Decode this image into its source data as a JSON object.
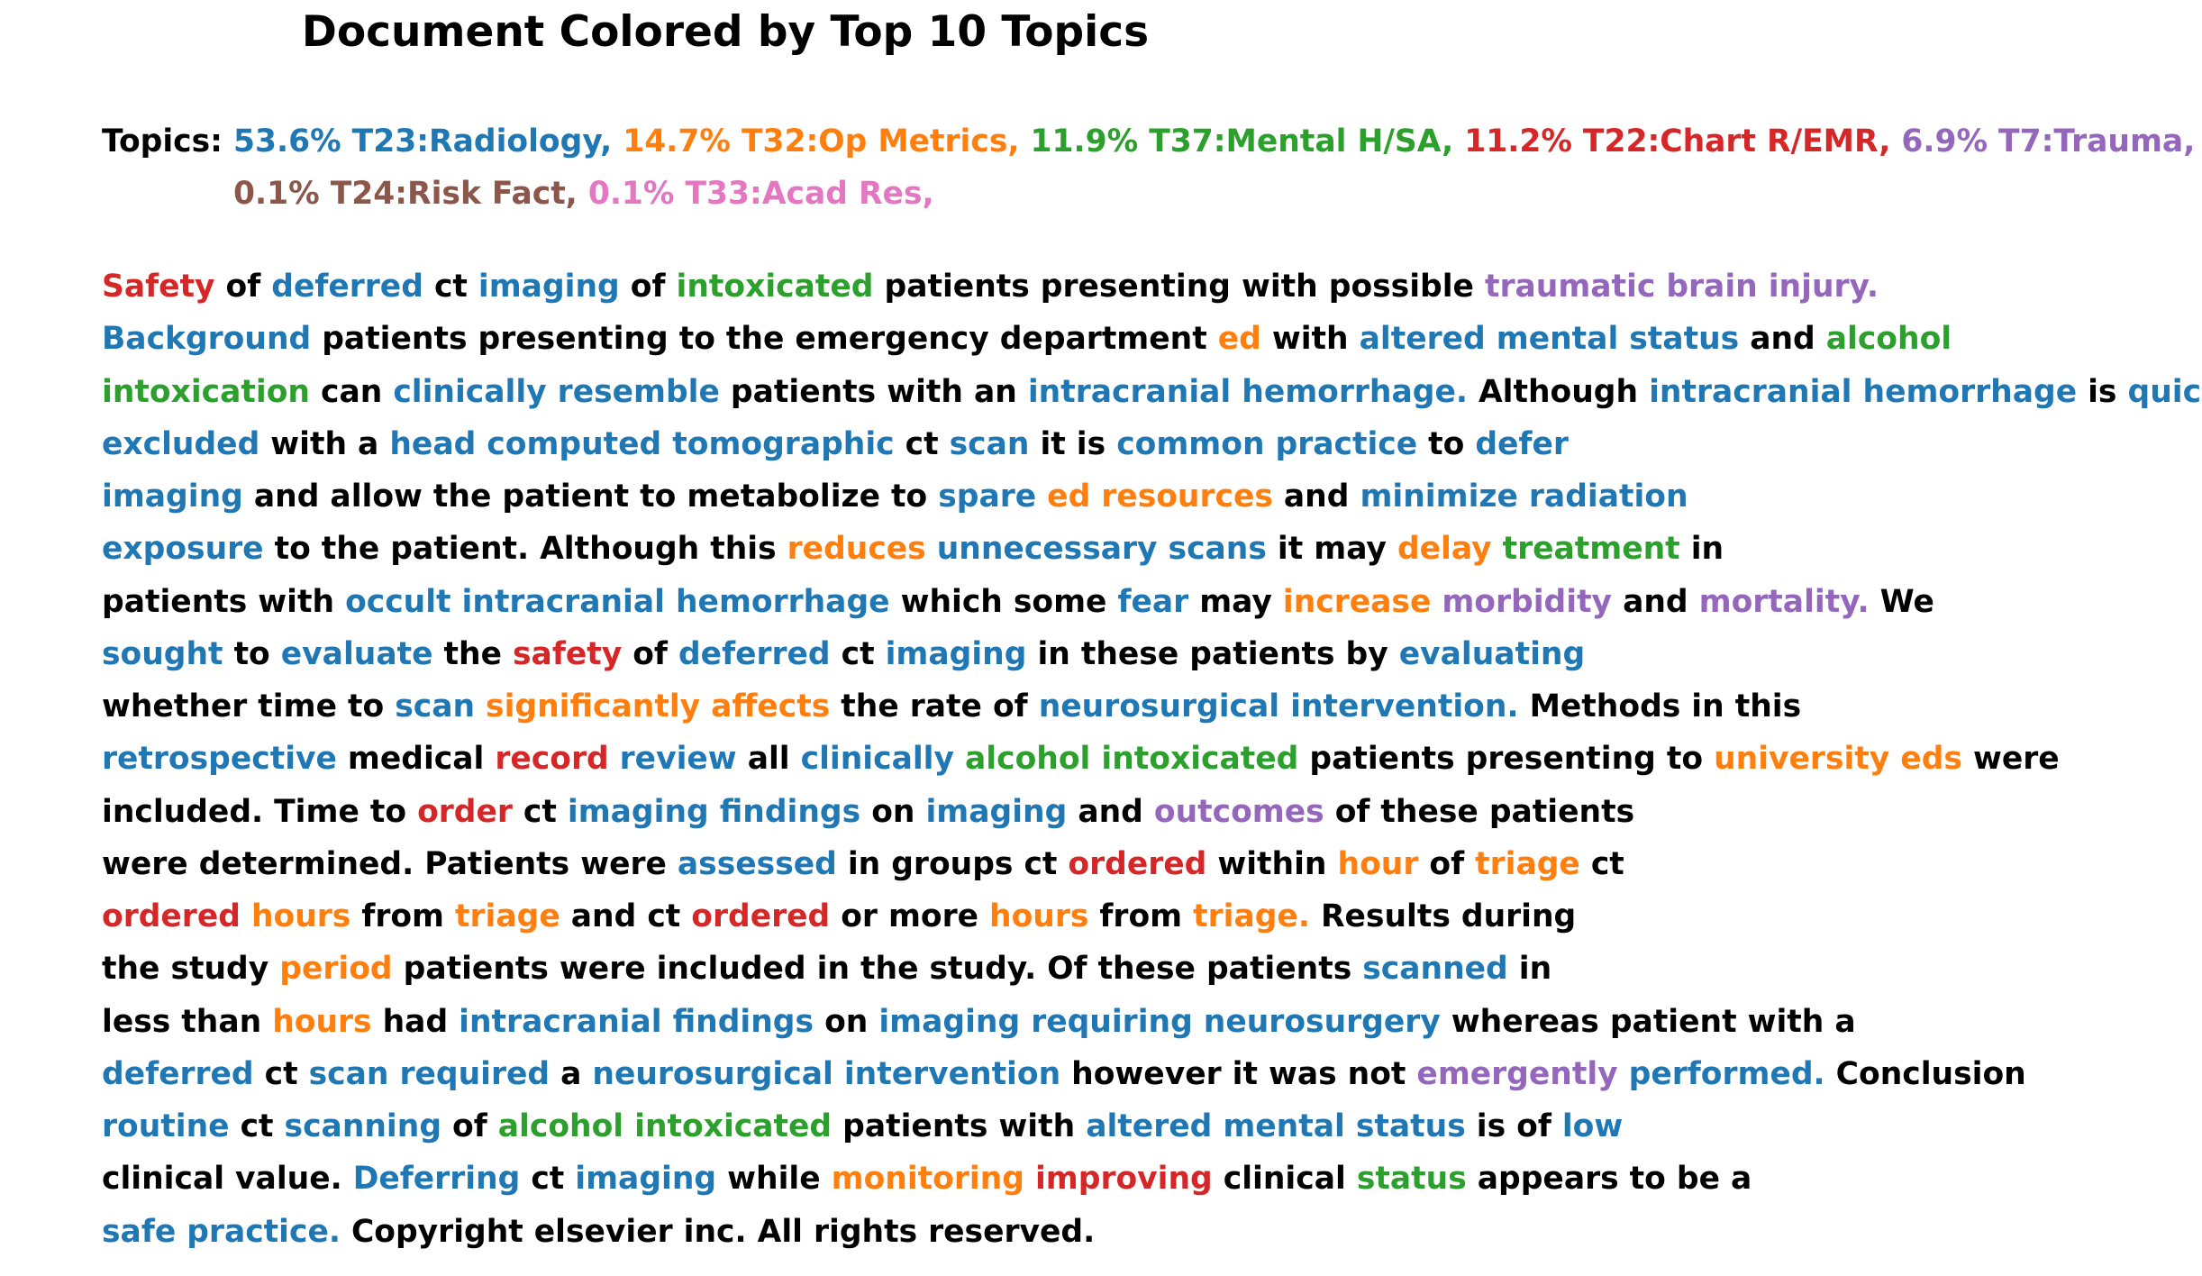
{
  "title": "Document Colored by Top 10 Topics",
  "colors": {
    "k": "#000000",
    "b": "#1f77b4",
    "o": "#ff7f0e",
    "g": "#2ca02c",
    "r": "#d62728",
    "p": "#9467bd",
    "n": "#8c564b",
    "m": "#e377c2"
  },
  "topics_label": "Topics:",
  "topics": [
    {
      "text": "53.6% T23:Radiology,",
      "color": "b"
    },
    {
      "text": "14.7% T32:Op Metrics,",
      "color": "o"
    },
    {
      "text": "11.9% T37:Mental H/SA,",
      "color": "g"
    },
    {
      "text": "11.2% T22:Chart R/EMR,",
      "color": "r"
    },
    {
      "text": "6.9% T7:Trauma,",
      "color": "p"
    },
    {
      "text": "0.1% T24:Risk Fact,",
      "color": "n"
    },
    {
      "text": "0.1% T33:Acad Res,",
      "color": "m"
    }
  ],
  "body_lines": [
    [
      [
        "Safety",
        "r"
      ],
      [
        "of",
        "k"
      ],
      [
        "deferred",
        "b"
      ],
      [
        "ct",
        "k"
      ],
      [
        "imaging",
        "b"
      ],
      [
        "of",
        "k"
      ],
      [
        "intoxicated",
        "g"
      ],
      [
        "patients presenting with possible",
        "k"
      ],
      [
        "traumatic brain injury.",
        "p"
      ]
    ],
    [
      [
        "Background",
        "b"
      ],
      [
        "patients presenting to the emergency department",
        "k"
      ],
      [
        "ed",
        "o"
      ],
      [
        "with",
        "k"
      ],
      [
        "altered mental status",
        "b"
      ],
      [
        "and",
        "k"
      ],
      [
        "alcohol",
        "g"
      ]
    ],
    [
      [
        "intoxication",
        "g"
      ],
      [
        "can",
        "k"
      ],
      [
        "clinically resemble",
        "b"
      ],
      [
        "patients with an",
        "k"
      ],
      [
        "intracranial hemorrhage.",
        "b"
      ],
      [
        "Although",
        "k"
      ],
      [
        "intracranial hemorrhage",
        "b"
      ],
      [
        "is",
        "k"
      ],
      [
        "quickly",
        "b"
      ]
    ],
    [
      [
        "excluded",
        "b"
      ],
      [
        "with a",
        "k"
      ],
      [
        "head computed tomographic",
        "b"
      ],
      [
        "ct",
        "k"
      ],
      [
        "scan",
        "b"
      ],
      [
        "it is",
        "k"
      ],
      [
        "common practice",
        "b"
      ],
      [
        "to",
        "k"
      ],
      [
        "defer",
        "b"
      ]
    ],
    [
      [
        "imaging",
        "b"
      ],
      [
        "and allow the patient to metabolize to",
        "k"
      ],
      [
        "spare",
        "b"
      ],
      [
        "ed resources",
        "o"
      ],
      [
        "and",
        "k"
      ],
      [
        "minimize radiation",
        "b"
      ]
    ],
    [
      [
        "exposure",
        "b"
      ],
      [
        "to the patient. Although this",
        "k"
      ],
      [
        "reduces",
        "o"
      ],
      [
        "unnecessary scans",
        "b"
      ],
      [
        "it may",
        "k"
      ],
      [
        "delay",
        "o"
      ],
      [
        "treatment",
        "g"
      ],
      [
        "in",
        "k"
      ]
    ],
    [
      [
        "patients with",
        "k"
      ],
      [
        "occult intracranial hemorrhage",
        "b"
      ],
      [
        "which some",
        "k"
      ],
      [
        "fear",
        "b"
      ],
      [
        "may",
        "k"
      ],
      [
        "increase",
        "o"
      ],
      [
        "morbidity",
        "p"
      ],
      [
        "and",
        "k"
      ],
      [
        "mortality.",
        "p"
      ],
      [
        "We",
        "k"
      ]
    ],
    [
      [
        "sought",
        "b"
      ],
      [
        "to",
        "k"
      ],
      [
        "evaluate",
        "b"
      ],
      [
        "the",
        "k"
      ],
      [
        "safety",
        "r"
      ],
      [
        "of",
        "k"
      ],
      [
        "deferred",
        "b"
      ],
      [
        "ct",
        "k"
      ],
      [
        "imaging",
        "b"
      ],
      [
        "in these patients by",
        "k"
      ],
      [
        "evaluating",
        "b"
      ]
    ],
    [
      [
        "whether time to",
        "k"
      ],
      [
        "scan",
        "b"
      ],
      [
        "significantly affects",
        "o"
      ],
      [
        "the rate of",
        "k"
      ],
      [
        "neurosurgical intervention.",
        "b"
      ],
      [
        "Methods in this",
        "k"
      ]
    ],
    [
      [
        "retrospective",
        "b"
      ],
      [
        "medical",
        "k"
      ],
      [
        "record",
        "r"
      ],
      [
        "review",
        "b"
      ],
      [
        "all",
        "k"
      ],
      [
        "clinically",
        "b"
      ],
      [
        "alcohol intoxicated",
        "g"
      ],
      [
        "patients presenting to",
        "k"
      ],
      [
        "university eds",
        "o"
      ],
      [
        "were",
        "k"
      ]
    ],
    [
      [
        "included. Time to",
        "k"
      ],
      [
        "order",
        "r"
      ],
      [
        "ct",
        "k"
      ],
      [
        "imaging findings",
        "b"
      ],
      [
        "on",
        "k"
      ],
      [
        "imaging",
        "b"
      ],
      [
        "and",
        "k"
      ],
      [
        "outcomes",
        "p"
      ],
      [
        "of these patients",
        "k"
      ]
    ],
    [
      [
        "were determined. Patients were",
        "k"
      ],
      [
        "assessed",
        "b"
      ],
      [
        "in groups ct",
        "k"
      ],
      [
        "ordered",
        "r"
      ],
      [
        "within",
        "k"
      ],
      [
        "hour",
        "o"
      ],
      [
        "of",
        "k"
      ],
      [
        "triage",
        "o"
      ],
      [
        "ct",
        "k"
      ]
    ],
    [
      [
        "ordered",
        "r"
      ],
      [
        "hours",
        "o"
      ],
      [
        "from",
        "k"
      ],
      [
        "triage",
        "o"
      ],
      [
        "and ct",
        "k"
      ],
      [
        "ordered",
        "r"
      ],
      [
        "or more",
        "k"
      ],
      [
        "hours",
        "o"
      ],
      [
        "from",
        "k"
      ],
      [
        "triage.",
        "o"
      ],
      [
        "Results during",
        "k"
      ]
    ],
    [
      [
        "the study",
        "k"
      ],
      [
        "period",
        "o"
      ],
      [
        "patients were included in the study. Of these patients",
        "k"
      ],
      [
        "scanned",
        "b"
      ],
      [
        "in",
        "k"
      ]
    ],
    [
      [
        "less than",
        "k"
      ],
      [
        "hours",
        "o"
      ],
      [
        "had",
        "k"
      ],
      [
        "intracranial findings",
        "b"
      ],
      [
        "on",
        "k"
      ],
      [
        "imaging requiring neurosurgery",
        "b"
      ],
      [
        "whereas patient with a",
        "k"
      ]
    ],
    [
      [
        "deferred",
        "b"
      ],
      [
        "ct",
        "k"
      ],
      [
        "scan required",
        "b"
      ],
      [
        "a",
        "k"
      ],
      [
        "neurosurgical intervention",
        "b"
      ],
      [
        "however it was not",
        "k"
      ],
      [
        "emergently",
        "p"
      ],
      [
        "performed.",
        "b"
      ],
      [
        "Conclusion",
        "k"
      ]
    ],
    [
      [
        "routine",
        "b"
      ],
      [
        "ct",
        "k"
      ],
      [
        "scanning",
        "b"
      ],
      [
        "of",
        "k"
      ],
      [
        "alcohol intoxicated",
        "g"
      ],
      [
        "patients with",
        "k"
      ],
      [
        "altered mental status",
        "b"
      ],
      [
        "is of",
        "k"
      ],
      [
        "low",
        "b"
      ]
    ],
    [
      [
        "clinical value.",
        "k"
      ],
      [
        "Deferring",
        "b"
      ],
      [
        "ct",
        "k"
      ],
      [
        "imaging",
        "b"
      ],
      [
        "while",
        "k"
      ],
      [
        "monitoring",
        "o"
      ],
      [
        "improving",
        "r"
      ],
      [
        "clinical",
        "k"
      ],
      [
        "status",
        "g"
      ],
      [
        "appears to be a",
        "k"
      ]
    ],
    [
      [
        "safe practice.",
        "b"
      ],
      [
        "Copyright elsevier inc. All rights reserved.",
        "k"
      ]
    ]
  ]
}
